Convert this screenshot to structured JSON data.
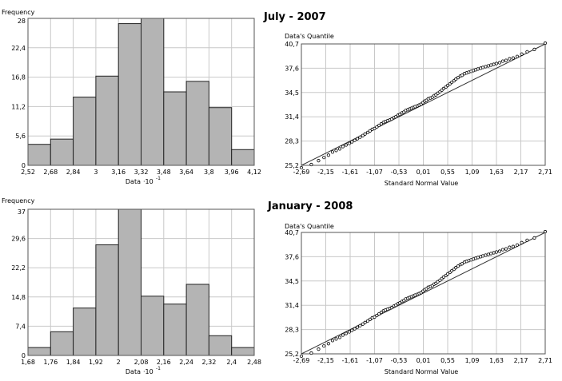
{
  "chart_data": [
    {
      "type": "bar",
      "panel": "histogram-july-2007",
      "ylabel": "Frequency",
      "xlabel": "Data",
      "xlabel_exp": "-1",
      "bin_edges": [
        2.52,
        2.68,
        2.84,
        3.0,
        3.16,
        3.32,
        3.48,
        3.64,
        3.8,
        3.96,
        4.12
      ],
      "xtick_labels": [
        "2,52",
        "2,68",
        "2,84",
        "3",
        "3,16",
        "3,32",
        "3,48",
        "3,64",
        "3,8",
        "3,96",
        "4,12"
      ],
      "values": [
        4,
        5,
        13,
        17,
        27,
        28,
        14,
        16,
        11,
        3
      ],
      "ylim": [
        0,
        28
      ],
      "ytick_values": [
        0,
        5.6,
        11.2,
        16.8,
        22.4,
        28
      ],
      "ytick_labels": [
        "0",
        "5,6",
        "11,2",
        "16,8",
        "22,4",
        "28"
      ],
      "grid": true,
      "bar_color": "#b4b4b4"
    },
    {
      "type": "scatter",
      "panel": "qq-july-2007",
      "title": "July - 2007",
      "ylabel": "Data's Quantile",
      "xlabel": "Standard Normal Value",
      "xlim": [
        -2.69,
        2.71
      ],
      "ylim": [
        25.2,
        40.7
      ],
      "xtick_values": [
        -2.69,
        -2.15,
        -1.61,
        -1.07,
        -0.53,
        0.01,
        0.55,
        1.09,
        1.63,
        2.17,
        2.71
      ],
      "xtick_labels": [
        "-2,69",
        "-2,15",
        "-1,61",
        "-1,07",
        "-0,53",
        "0,01",
        "0,55",
        "1,09",
        "1,63",
        "2,17",
        "2,71"
      ],
      "ytick_values": [
        25.2,
        28.3,
        31.4,
        34.5,
        37.6,
        40.7
      ],
      "ytick_labels": [
        "25,2",
        "28,3",
        "31,4",
        "34,5",
        "37,6",
        "40,7"
      ],
      "reference_line": [
        [
          -2.69,
          25.0
        ],
        [
          2.71,
          40.7
        ]
      ],
      "points": [
        [
          -2.69,
          24.9
        ],
        [
          -2.47,
          25.3
        ],
        [
          -2.31,
          25.8
        ],
        [
          -2.19,
          26.2
        ],
        [
          -2.09,
          26.5
        ],
        [
          -2.0,
          26.9
        ],
        [
          -1.92,
          27.1
        ],
        [
          -1.84,
          27.3
        ],
        [
          -1.77,
          27.6
        ],
        [
          -1.7,
          27.8
        ],
        [
          -1.63,
          28.0
        ],
        [
          -1.57,
          28.2
        ],
        [
          -1.51,
          28.4
        ],
        [
          -1.45,
          28.6
        ],
        [
          -1.39,
          28.8
        ],
        [
          -1.33,
          29.0
        ],
        [
          -1.28,
          29.2
        ],
        [
          -1.22,
          29.4
        ],
        [
          -1.17,
          29.6
        ],
        [
          -1.12,
          29.8
        ],
        [
          -1.07,
          29.9
        ],
        [
          -1.02,
          30.1
        ],
        [
          -0.97,
          30.3
        ],
        [
          -0.92,
          30.5
        ],
        [
          -0.87,
          30.7
        ],
        [
          -0.83,
          30.8
        ],
        [
          -0.78,
          30.9
        ],
        [
          -0.73,
          31.0
        ],
        [
          -0.69,
          31.1
        ],
        [
          -0.64,
          31.3
        ],
        [
          -0.6,
          31.4
        ],
        [
          -0.55,
          31.6
        ],
        [
          -0.51,
          31.7
        ],
        [
          -0.46,
          31.9
        ],
        [
          -0.42,
          32.0
        ],
        [
          -0.38,
          32.2
        ],
        [
          -0.33,
          32.3
        ],
        [
          -0.29,
          32.4
        ],
        [
          -0.25,
          32.5
        ],
        [
          -0.21,
          32.6
        ],
        [
          -0.17,
          32.7
        ],
        [
          -0.12,
          32.8
        ],
        [
          -0.08,
          32.9
        ],
        [
          -0.04,
          33.0
        ],
        [
          0.0,
          33.2
        ],
        [
          0.04,
          33.4
        ],
        [
          0.08,
          33.5
        ],
        [
          0.12,
          33.7
        ],
        [
          0.17,
          33.8
        ],
        [
          0.21,
          33.9
        ],
        [
          0.25,
          34.1
        ],
        [
          0.29,
          34.2
        ],
        [
          0.33,
          34.4
        ],
        [
          0.38,
          34.6
        ],
        [
          0.42,
          34.8
        ],
        [
          0.46,
          35.0
        ],
        [
          0.51,
          35.2
        ],
        [
          0.55,
          35.4
        ],
        [
          0.6,
          35.6
        ],
        [
          0.64,
          35.8
        ],
        [
          0.69,
          36.0
        ],
        [
          0.73,
          36.2
        ],
        [
          0.78,
          36.4
        ],
        [
          0.83,
          36.6
        ],
        [
          0.87,
          36.7
        ],
        [
          0.92,
          36.9
        ],
        [
          0.97,
          37.0
        ],
        [
          1.02,
          37.1
        ],
        [
          1.07,
          37.2
        ],
        [
          1.12,
          37.3
        ],
        [
          1.17,
          37.4
        ],
        [
          1.22,
          37.5
        ],
        [
          1.28,
          37.6
        ],
        [
          1.33,
          37.7
        ],
        [
          1.39,
          37.8
        ],
        [
          1.45,
          37.9
        ],
        [
          1.51,
          38.0
        ],
        [
          1.57,
          38.1
        ],
        [
          1.63,
          38.2
        ],
        [
          1.7,
          38.3
        ],
        [
          1.77,
          38.5
        ],
        [
          1.84,
          38.6
        ],
        [
          1.92,
          38.8
        ],
        [
          2.0,
          38.9
        ],
        [
          2.09,
          39.1
        ],
        [
          2.19,
          39.4
        ],
        [
          2.31,
          39.7
        ],
        [
          2.47,
          40.0
        ],
        [
          2.71,
          40.8
        ]
      ],
      "point_color": "#000000"
    },
    {
      "type": "bar",
      "panel": "histogram-january-2008",
      "ylabel": "Frequency",
      "xlabel": "Data",
      "xlabel_exp": "-1",
      "bin_edges": [
        1.68,
        1.76,
        1.84,
        1.92,
        2.0,
        2.08,
        2.16,
        2.24,
        2.32,
        2.4,
        2.48
      ],
      "xtick_labels": [
        "1,68",
        "1,76",
        "1,84",
        "1,92",
        "2",
        "2,08",
        "2,16",
        "2,24",
        "2,32",
        "2,4",
        "2,48"
      ],
      "values": [
        2,
        6,
        12,
        28,
        37,
        15,
        13,
        18,
        5,
        2
      ],
      "ylim": [
        0,
        37
      ],
      "ytick_values": [
        0,
        7.4,
        14.8,
        22.2,
        29.6,
        37
      ],
      "ytick_labels": [
        "0",
        "7,4",
        "14,8",
        "22,2",
        "29,6",
        "37"
      ],
      "grid": true,
      "bar_color": "#b4b4b4"
    },
    {
      "type": "scatter",
      "panel": "qq-january-2008",
      "title": "January - 2008",
      "ylabel": "Data's Quantile",
      "xlabel": "Standard Normal Value",
      "xlim": [
        -2.69,
        2.71
      ],
      "ylim": [
        25.2,
        40.7
      ],
      "xtick_values": [
        -2.69,
        -2.15,
        -1.61,
        -1.07,
        -0.53,
        0.01,
        0.55,
        1.09,
        1.63,
        2.17,
        2.71
      ],
      "xtick_labels": [
        "-2,69",
        "-2,15",
        "-1,61",
        "-1,07",
        "-0,53",
        "0,01",
        "0,55",
        "1,09",
        "1,63",
        "2,17",
        "2,71"
      ],
      "ytick_values": [
        25.2,
        28.3,
        31.4,
        34.5,
        37.6,
        40.7
      ],
      "ytick_labels": [
        "25,2",
        "28,3",
        "31,4",
        "34,5",
        "37,6",
        "40,7"
      ],
      "reference_line": [
        [
          -2.69,
          25.0
        ],
        [
          2.71,
          40.7
        ]
      ],
      "points": [
        [
          -2.69,
          24.9
        ],
        [
          -2.47,
          25.3
        ],
        [
          -2.31,
          25.8
        ],
        [
          -2.19,
          26.2
        ],
        [
          -2.09,
          26.5
        ],
        [
          -2.0,
          26.9
        ],
        [
          -1.92,
          27.1
        ],
        [
          -1.84,
          27.3
        ],
        [
          -1.77,
          27.6
        ],
        [
          -1.7,
          27.8
        ],
        [
          -1.63,
          28.0
        ],
        [
          -1.57,
          28.2
        ],
        [
          -1.51,
          28.4
        ],
        [
          -1.45,
          28.6
        ],
        [
          -1.39,
          28.8
        ],
        [
          -1.33,
          29.0
        ],
        [
          -1.28,
          29.2
        ],
        [
          -1.22,
          29.4
        ],
        [
          -1.17,
          29.6
        ],
        [
          -1.12,
          29.8
        ],
        [
          -1.07,
          29.9
        ],
        [
          -1.02,
          30.1
        ],
        [
          -0.97,
          30.3
        ],
        [
          -0.92,
          30.5
        ],
        [
          -0.87,
          30.7
        ],
        [
          -0.83,
          30.8
        ],
        [
          -0.78,
          30.9
        ],
        [
          -0.73,
          31.0
        ],
        [
          -0.69,
          31.1
        ],
        [
          -0.64,
          31.3
        ],
        [
          -0.6,
          31.4
        ],
        [
          -0.55,
          31.6
        ],
        [
          -0.51,
          31.7
        ],
        [
          -0.46,
          31.9
        ],
        [
          -0.42,
          32.0
        ],
        [
          -0.38,
          32.2
        ],
        [
          -0.33,
          32.3
        ],
        [
          -0.29,
          32.4
        ],
        [
          -0.25,
          32.5
        ],
        [
          -0.21,
          32.6
        ],
        [
          -0.17,
          32.7
        ],
        [
          -0.12,
          32.8
        ],
        [
          -0.08,
          32.9
        ],
        [
          -0.04,
          33.0
        ],
        [
          0.0,
          33.2
        ],
        [
          0.04,
          33.4
        ],
        [
          0.08,
          33.5
        ],
        [
          0.12,
          33.7
        ],
        [
          0.17,
          33.8
        ],
        [
          0.21,
          33.9
        ],
        [
          0.25,
          34.1
        ],
        [
          0.29,
          34.2
        ],
        [
          0.33,
          34.4
        ],
        [
          0.38,
          34.6
        ],
        [
          0.42,
          34.8
        ],
        [
          0.46,
          35.0
        ],
        [
          0.51,
          35.2
        ],
        [
          0.55,
          35.4
        ],
        [
          0.6,
          35.6
        ],
        [
          0.64,
          35.8
        ],
        [
          0.69,
          36.0
        ],
        [
          0.73,
          36.2
        ],
        [
          0.78,
          36.4
        ],
        [
          0.83,
          36.6
        ],
        [
          0.87,
          36.7
        ],
        [
          0.92,
          36.9
        ],
        [
          0.97,
          37.0
        ],
        [
          1.02,
          37.1
        ],
        [
          1.07,
          37.2
        ],
        [
          1.12,
          37.3
        ],
        [
          1.17,
          37.4
        ],
        [
          1.22,
          37.5
        ],
        [
          1.28,
          37.6
        ],
        [
          1.33,
          37.7
        ],
        [
          1.39,
          37.8
        ],
        [
          1.45,
          37.9
        ],
        [
          1.51,
          38.0
        ],
        [
          1.57,
          38.1
        ],
        [
          1.63,
          38.2
        ],
        [
          1.7,
          38.3
        ],
        [
          1.77,
          38.5
        ],
        [
          1.84,
          38.6
        ],
        [
          1.92,
          38.8
        ],
        [
          2.0,
          38.9
        ],
        [
          2.09,
          39.1
        ],
        [
          2.19,
          39.4
        ],
        [
          2.31,
          39.7
        ],
        [
          2.47,
          40.0
        ],
        [
          2.71,
          40.8
        ]
      ],
      "point_color": "#000000"
    }
  ]
}
